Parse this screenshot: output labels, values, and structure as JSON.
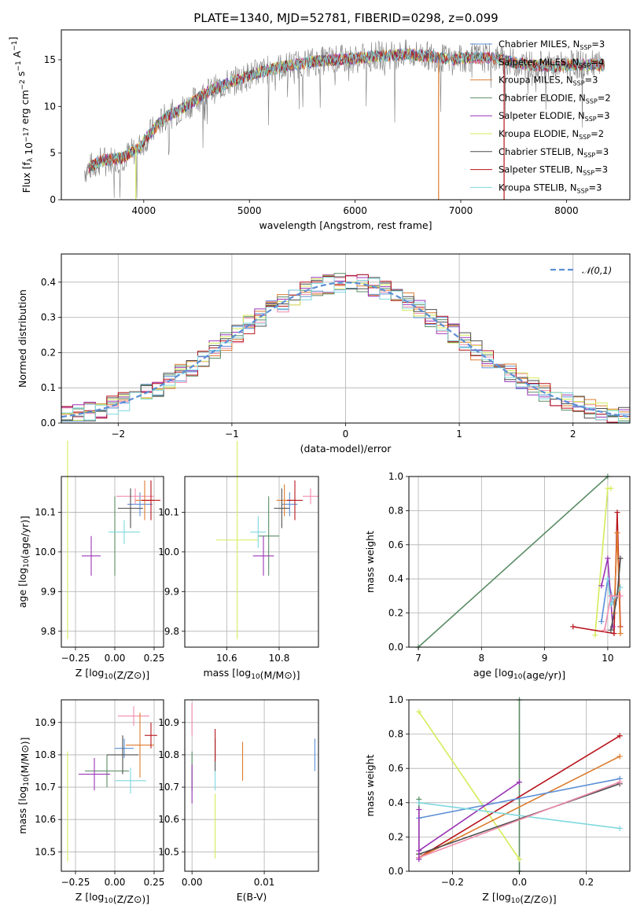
{
  "title": "PLATE=1340, MJD=52781, FIBERID=0298, z=0.099",
  "colors": {
    "chabrier_miles": "#5b8fd6",
    "salpeter_miles": "#f08bab",
    "kroupa_miles": "#de7c2e",
    "chabrier_elodie": "#5a8c64",
    "salpeter_elodie": "#9a35b5",
    "kroupa_elodie": "#d4ec5a",
    "chabrier_stelib": "#4d4d4d",
    "salpeter_stelib": "#b8141c",
    "kroupa_stelib": "#7fd8de",
    "data_spectrum": "#808080",
    "gauss_curve": "#5b8fd6"
  },
  "chart_data": [
    {
      "type": "line",
      "panel": "spectrum",
      "xlabel": "wavelength [Angstrom, rest frame]",
      "ylabel": "Flux [f_λ 10^-17 erg cm^-2 s^-1 A^-1]",
      "xlim": [
        3220,
        8600
      ],
      "ylim": [
        0,
        18.2
      ],
      "xticks": [
        "4000",
        "5000",
        "6000",
        "7000",
        "8000"
      ],
      "yticks": [
        "0",
        "5",
        "10",
        "15"
      ],
      "grid": false,
      "legend_position": "right",
      "legend": [
        {
          "label": "Chabrier MILES, N",
          "sub": "SSP",
          "suffix": "=3",
          "color_key": "chabrier_miles"
        },
        {
          "label": "Salpeter MILES, N",
          "sub": "SSP",
          "suffix": "=4",
          "color_key": "salpeter_miles"
        },
        {
          "label": "Kroupa MILES, N",
          "sub": "SSP",
          "suffix": "=3",
          "color_key": "kroupa_miles"
        },
        {
          "label": "Chabrier ELODIE, N",
          "sub": "SSP",
          "suffix": "=2",
          "color_key": "chabrier_elodie"
        },
        {
          "label": "Salpeter ELODIE, N",
          "sub": "SSP",
          "suffix": "=3",
          "color_key": "salpeter_elodie"
        },
        {
          "label": "Kroupa ELODIE, N",
          "sub": "SSP",
          "suffix": "=2",
          "color_key": "kroupa_elodie"
        },
        {
          "label": "Chabrier STELIB, N",
          "sub": "SSP",
          "suffix": "=3",
          "color_key": "chabrier_stelib"
        },
        {
          "label": "Salpeter STELIB, N",
          "sub": "SSP",
          "suffix": "=3",
          "color_key": "salpeter_stelib"
        },
        {
          "label": "Kroupa STELIB, N",
          "sub": "SSP",
          "suffix": "=3",
          "color_key": "kroupa_stelib"
        }
      ],
      "continuum_nodes": [
        [
          3450,
          3.2
        ],
        [
          3600,
          4.2
        ],
        [
          3800,
          4.5
        ],
        [
          3950,
          5.5
        ],
        [
          4050,
          7.0
        ],
        [
          4200,
          8.8
        ],
        [
          4400,
          10.0
        ],
        [
          4600,
          11.5
        ],
        [
          4800,
          12.5
        ],
        [
          5000,
          13.3
        ],
        [
          5200,
          14.0
        ],
        [
          5400,
          14.4
        ],
        [
          5600,
          14.8
        ],
        [
          5800,
          15.0
        ],
        [
          6000,
          15.1
        ],
        [
          6200,
          15.4
        ],
        [
          6500,
          15.6
        ],
        [
          6700,
          15.4
        ],
        [
          6900,
          15.0
        ],
        [
          7100,
          15.2
        ],
        [
          7300,
          15.2
        ],
        [
          7500,
          14.7
        ],
        [
          7700,
          14.4
        ],
        [
          7900,
          14.3
        ],
        [
          8100,
          14.5
        ],
        [
          8350,
          14.4
        ]
      ],
      "model_range": [
        3480,
        8360
      ],
      "data_range": [
        3440,
        8320
      ],
      "artifact_lines": [
        {
          "x": 6790,
          "y_top": 15.0,
          "color_key": "kroupa_miles"
        },
        {
          "x": 7410,
          "y_top": 15.2,
          "color_key": "salpeter_stelib"
        },
        {
          "x": 3925,
          "y_top": 5.5,
          "color_key": "kroupa_elodie"
        }
      ]
    },
    {
      "type": "line",
      "panel": "residual_histogram",
      "xlabel": "(data-model)/error",
      "ylabel": "Normed distribution",
      "xlim": [
        -2.5,
        2.5
      ],
      "ylim": [
        0,
        0.48
      ],
      "xticks": [
        "−2",
        "−1",
        "0",
        "1",
        "2"
      ],
      "yticks": [
        "0.0",
        "0.1",
        "0.2",
        "0.3",
        "0.4"
      ],
      "grid": true,
      "bin_width": 0.1,
      "legend": [
        {
          "label": "𝒩(0,1)"
        }
      ],
      "gauss_amplitude": 0.3989,
      "histogram_noise_amplitude": 0.028
    },
    {
      "type": "scatter",
      "panel": "age_vs_Z",
      "xlabel": "Z [log10(Z/Z⊙)]",
      "ylabel": "age  [log10(age/yr)]",
      "xlim": [
        -0.34,
        0.31
      ],
      "ylim": [
        9.76,
        10.19
      ],
      "xticks": [
        "−0.25",
        "0.00",
        "0.25"
      ],
      "yticks": [
        "9.8",
        "9.9",
        "10.0",
        "10.1"
      ],
      "grid": true,
      "points": [
        {
          "color_key": "chabrier_miles",
          "x": 0.16,
          "y": 10.12,
          "xerr": 0.08,
          "yerr": 0.03
        },
        {
          "color_key": "salpeter_miles",
          "x": 0.13,
          "y": 10.14,
          "xerr": 0.12,
          "yerr": 0.02
        },
        {
          "color_key": "kroupa_miles",
          "x": 0.19,
          "y": 10.13,
          "xerr": 0.06,
          "yerr": 0.05
        },
        {
          "color_key": "chabrier_elodie",
          "x": 0.0,
          "y": 10.04,
          "xerr": 0.0,
          "yerr": 0.1
        },
        {
          "color_key": "salpeter_elodie",
          "x": -0.15,
          "y": 9.99,
          "xerr": 0.06,
          "yerr": 0.05
        },
        {
          "color_key": "kroupa_elodie",
          "x": -0.3,
          "y": 10.03,
          "xerr": 0.0,
          "yerr": 0.25
        },
        {
          "color_key": "chabrier_stelib",
          "x": 0.1,
          "y": 10.11,
          "xerr": 0.08,
          "yerr": 0.05
        },
        {
          "color_key": "salpeter_stelib",
          "x": 0.23,
          "y": 10.13,
          "xerr": 0.06,
          "yerr": 0.05
        },
        {
          "color_key": "kroupa_stelib",
          "x": 0.06,
          "y": 10.05,
          "xerr": 0.1,
          "yerr": 0.03
        }
      ]
    },
    {
      "type": "scatter",
      "panel": "age_vs_mass",
      "xlabel": "mass [log10(M/M⊙)]",
      "ylabel": "",
      "xlim": [
        10.44,
        10.95
      ],
      "ylim": [
        9.76,
        10.19
      ],
      "xticks": [
        "10.6",
        "10.8"
      ],
      "yticks": [
        "9.8",
        "9.9",
        "10.0",
        "10.1"
      ],
      "grid": true,
      "points": [
        {
          "color_key": "chabrier_miles",
          "x": 10.84,
          "y": 10.12,
          "xerr": 0.03,
          "yerr": 0.03
        },
        {
          "color_key": "salpeter_miles",
          "x": 10.92,
          "y": 10.14,
          "xerr": 0.03,
          "yerr": 0.02
        },
        {
          "color_key": "kroupa_miles",
          "x": 10.82,
          "y": 10.13,
          "xerr": 0.03,
          "yerr": 0.04
        },
        {
          "color_key": "chabrier_elodie",
          "x": 10.76,
          "y": 10.04,
          "xerr": 0.04,
          "yerr": 0.1
        },
        {
          "color_key": "salpeter_elodie",
          "x": 10.74,
          "y": 9.99,
          "xerr": 0.04,
          "yerr": 0.05
        },
        {
          "color_key": "kroupa_elodie",
          "x": 10.64,
          "y": 10.03,
          "xerr": 0.08,
          "yerr": 0.25
        },
        {
          "color_key": "chabrier_stelib",
          "x": 10.81,
          "y": 10.11,
          "xerr": 0.03,
          "yerr": 0.05
        },
        {
          "color_key": "salpeter_stelib",
          "x": 10.86,
          "y": 10.13,
          "xerr": 0.03,
          "yerr": 0.05
        },
        {
          "color_key": "kroupa_stelib",
          "x": 10.72,
          "y": 10.05,
          "xerr": 0.03,
          "yerr": 0.04
        }
      ]
    },
    {
      "type": "line",
      "panel": "mass_weight_vs_age",
      "xlabel": "age  [log10(age/yr)]",
      "ylabel": "mass weight",
      "xlim": [
        6.85,
        10.35
      ],
      "ylim": [
        0,
        1.0
      ],
      "xticks": [
        "7",
        "8",
        "9",
        "10"
      ],
      "yticks": [
        "0.0",
        "0.2",
        "0.4",
        "0.6",
        "0.8",
        "1.0"
      ],
      "grid": true,
      "series": [
        {
          "color_key": "chabrier_elodie",
          "x": [
            7.0,
            10.0
          ],
          "y": [
            0.0,
            1.0
          ]
        },
        {
          "color_key": "kroupa_elodie",
          "x": [
            9.8,
            10.0,
            10.05
          ],
          "y": [
            0.07,
            0.93,
            0.93
          ]
        },
        {
          "color_key": "salpeter_stelib",
          "x": [
            9.45,
            10.1,
            10.15,
            10.2
          ],
          "y": [
            0.12,
            0.08,
            0.79,
            0.12
          ]
        },
        {
          "color_key": "chabrier_miles",
          "x": [
            9.9,
            10.0,
            10.1
          ],
          "y": [
            0.15,
            0.4,
            0.25
          ]
        },
        {
          "color_key": "salpeter_elodie",
          "x": [
            9.9,
            10.0,
            10.08
          ],
          "y": [
            0.36,
            0.52,
            0.12
          ]
        },
        {
          "color_key": "kroupa_miles",
          "x": [
            10.1,
            10.15,
            10.2
          ],
          "y": [
            0.2,
            0.67,
            0.08
          ]
        },
        {
          "color_key": "kroupa_stelib",
          "x": [
            10.0,
            10.05,
            10.2
          ],
          "y": [
            0.4,
            0.25,
            0.35
          ]
        },
        {
          "color_key": "chabrier_stelib",
          "x": [
            10.05,
            10.15,
            10.2
          ],
          "y": [
            0.1,
            0.3,
            0.52
          ]
        },
        {
          "color_key": "salpeter_miles",
          "x": [
            9.95,
            10.05,
            10.2
          ],
          "y": [
            0.1,
            0.3,
            0.3
          ]
        }
      ]
    },
    {
      "type": "scatter",
      "panel": "mass_vs_Z",
      "xlabel": "Z [log10(Z/Z⊙)]",
      "ylabel": "mass [log10(M/M⊙)]",
      "xlim": [
        -0.34,
        0.31
      ],
      "ylim": [
        10.44,
        10.97
      ],
      "xticks": [
        "−0.25",
        "0.00",
        "0.25"
      ],
      "yticks": [
        "10.5",
        "10.6",
        "10.7",
        "10.8",
        "10.9"
      ],
      "grid": true,
      "points": [
        {
          "color_key": "chabrier_miles",
          "x": 0.06,
          "y": 10.82,
          "xerr": 0.06,
          "yerr": 0.03
        },
        {
          "color_key": "salpeter_miles",
          "x": 0.12,
          "y": 10.92,
          "xerr": 0.1,
          "yerr": 0.03
        },
        {
          "color_key": "kroupa_miles",
          "x": 0.16,
          "y": 10.83,
          "xerr": 0.09,
          "yerr": 0.1
        },
        {
          "color_key": "chabrier_elodie",
          "x": -0.05,
          "y": 10.75,
          "xerr": 0.14,
          "yerr": 0.05
        },
        {
          "color_key": "salpeter_elodie",
          "x": -0.13,
          "y": 10.74,
          "xerr": 0.1,
          "yerr": 0.05
        },
        {
          "color_key": "kroupa_elodie",
          "x": -0.3,
          "y": 10.64,
          "xerr": 0.0,
          "yerr": 0.17
        },
        {
          "color_key": "chabrier_stelib",
          "x": 0.05,
          "y": 10.8,
          "xerr": 0.1,
          "yerr": 0.06
        },
        {
          "color_key": "salpeter_stelib",
          "x": 0.23,
          "y": 10.86,
          "xerr": 0.04,
          "yerr": 0.04
        },
        {
          "color_key": "kroupa_stelib",
          "x": 0.1,
          "y": 10.72,
          "xerr": 0.1,
          "yerr": 0.04
        }
      ]
    },
    {
      "type": "scatter",
      "panel": "mass_vs_EBV",
      "xlabel": "E(B-V)",
      "ylabel": "",
      "xlim": [
        -0.001,
        0.0175
      ],
      "ylim": [
        10.44,
        10.97
      ],
      "xticks": [
        "0.00",
        "0.01"
      ],
      "yticks": [
        "10.5",
        "10.6",
        "10.7",
        "10.8",
        "10.9"
      ],
      "grid": true,
      "points": [
        {
          "color_key": "chabrier_miles",
          "x": 0.017,
          "y": 10.8,
          "xerr": 0.0,
          "yerr": 0.05
        },
        {
          "color_key": "salpeter_miles",
          "x": 0.0,
          "y": 10.91,
          "xerr": 0.0,
          "yerr": 0.05
        },
        {
          "color_key": "kroupa_miles",
          "x": 0.007,
          "y": 10.78,
          "xerr": 0.0,
          "yerr": 0.06
        },
        {
          "color_key": "chabrier_elodie",
          "x": 0.0,
          "y": 10.75,
          "xerr": 0.0,
          "yerr": 0.06
        },
        {
          "color_key": "salpeter_elodie",
          "x": 0.0,
          "y": 10.71,
          "xerr": 0.0,
          "yerr": 0.06
        },
        {
          "color_key": "kroupa_elodie",
          "x": 0.0032,
          "y": 10.58,
          "xerr": 0.0,
          "yerr": 0.1
        },
        {
          "color_key": "chabrier_stelib",
          "x": 0.0032,
          "y": 10.8,
          "xerr": 0.0,
          "yerr": 0.05
        },
        {
          "color_key": "salpeter_stelib",
          "x": 0.0032,
          "y": 10.83,
          "xerr": 0.0,
          "yerr": 0.05
        },
        {
          "color_key": "kroupa_stelib",
          "x": 0.0032,
          "y": 10.72,
          "xerr": 0.0,
          "yerr": 0.03
        }
      ]
    },
    {
      "type": "line",
      "panel": "mass_weight_vs_Z",
      "xlabel": "Z [log10(Z/Z⊙)]",
      "ylabel": "mass weight",
      "xlim": [
        -0.33,
        0.33
      ],
      "ylim": [
        0,
        1.0
      ],
      "xticks": [
        "−0.2",
        "0.0",
        "0.2"
      ],
      "yticks": [
        "0.0",
        "0.2",
        "0.4",
        "0.6",
        "0.8",
        "1.0"
      ],
      "grid": true,
      "series": [
        {
          "color_key": "chabrier_elodie",
          "x": [
            0.0,
            0.0
          ],
          "y": [
            0.0,
            1.0
          ]
        },
        {
          "color_key": "chabrier_elodie",
          "x": [
            -0.3,
            -0.3
          ],
          "y": [
            0.1,
            0.42
          ]
        },
        {
          "color_key": "kroupa_elodie",
          "x": [
            -0.3,
            0.0
          ],
          "y": [
            0.93,
            0.07
          ]
        },
        {
          "color_key": "salpeter_stelib",
          "x": [
            -0.3,
            0.3
          ],
          "y": [
            0.08,
            0.79
          ]
        },
        {
          "color_key": "kroupa_miles",
          "x": [
            -0.3,
            0.3
          ],
          "y": [
            0.08,
            0.67
          ]
        },
        {
          "color_key": "chabrier_miles",
          "x": [
            -0.3,
            0.3
          ],
          "y": [
            0.31,
            0.54
          ]
        },
        {
          "color_key": "salpeter_elodie",
          "x": [
            -0.3,
            0.0
          ],
          "y": [
            0.12,
            0.52
          ]
        },
        {
          "color_key": "kroupa_stelib",
          "x": [
            -0.3,
            0.3
          ],
          "y": [
            0.4,
            0.25
          ]
        },
        {
          "color_key": "chabrier_stelib",
          "x": [
            -0.3,
            0.3
          ],
          "y": [
            0.1,
            0.51
          ]
        },
        {
          "color_key": "salpeter_miles",
          "x": [
            -0.3,
            0.3
          ],
          "y": [
            0.08,
            0.52
          ]
        },
        {
          "color_key": "salpeter_elodie",
          "x": [
            -0.3,
            -0.3
          ],
          "y": [
            0.07,
            0.36
          ]
        }
      ]
    }
  ]
}
